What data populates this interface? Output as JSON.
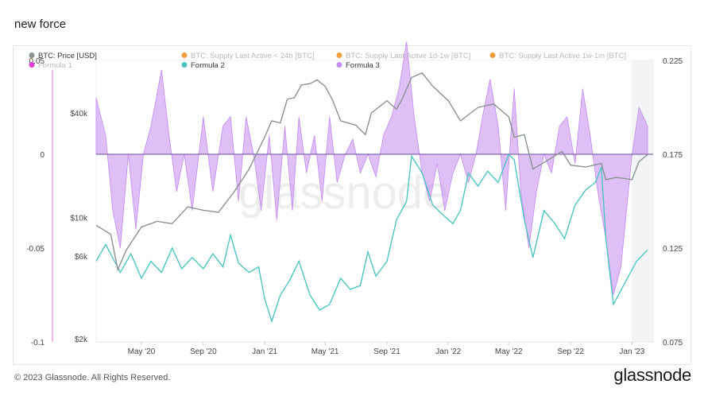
{
  "page": {
    "title": "new force",
    "footer": "© 2023 Glassnode. All Rights Reserved.",
    "brand": "glassnode",
    "watermark": "glassnode"
  },
  "colors": {
    "btc_price": "#8a9290",
    "formula2": "#4dc6c2",
    "formula3": "#c38aef",
    "orange": "#f59c3b",
    "magenta": "#e33ad6"
  },
  "chart_data": {
    "type": "line",
    "legend": [
      {
        "name": "BTC: Price [USD]",
        "color": "#8a9290",
        "faded": false
      },
      {
        "name": "BTC: Supply Last Active < 24h [BTC]",
        "color": "#f59c3b",
        "faded": true
      },
      {
        "name": "BTC: Supply Last Active 1d-1w [BTC]",
        "color": "#f59c3b",
        "faded": true
      },
      {
        "name": "BTC: Supply Last Active 1w-1m [BTC]",
        "color": "#f59c3b",
        "faded": true
      },
      {
        "name": "Formula 1",
        "color": "#e33ad6",
        "faded": true
      },
      {
        "name": "Formula 2",
        "color": "#4dc6c2",
        "faded": false
      },
      {
        "name": "Formula 3",
        "color": "#c38aef",
        "faded": false
      }
    ],
    "x_ticks": [
      "May '20",
      "Sep '20",
      "Jan '21",
      "May '21",
      "Sep '21",
      "Jan '22",
      "May '22",
      "Sep '22",
      "Jan '23"
    ],
    "left_axis_ticks": [
      "0.05",
      "0",
      "-0.05",
      "-0.1"
    ],
    "price_axis_ticks": [
      "$40k",
      "$10k",
      "$6k",
      "$2k"
    ],
    "right_axis_ticks": [
      "0.225",
      "0.175",
      "0.125",
      "0.075"
    ],
    "left_range": [
      -0.1,
      0.05
    ],
    "right_range": [
      0.075,
      0.225
    ],
    "price_scale": "log",
    "series": [
      {
        "name": "BTC: Price [USD]",
        "axis": "price",
        "points": [
          [
            "2020-02-01",
            9000
          ],
          [
            "2020-03-01",
            8000
          ],
          [
            "2020-03-15",
            5000
          ],
          [
            "2020-04-01",
            6500
          ],
          [
            "2020-05-01",
            8800
          ],
          [
            "2020-06-01",
            9500
          ],
          [
            "2020-07-01",
            9200
          ],
          [
            "2020-08-01",
            11500
          ],
          [
            "2020-09-01",
            11000
          ],
          [
            "2020-10-01",
            10700
          ],
          [
            "2020-11-01",
            14000
          ],
          [
            "2020-12-01",
            19000
          ],
          [
            "2021-01-01",
            29000
          ],
          [
            "2021-01-15",
            36000
          ],
          [
            "2021-02-01",
            35000
          ],
          [
            "2021-02-15",
            48000
          ],
          [
            "2021-03-01",
            49000
          ],
          [
            "2021-03-15",
            58000
          ],
          [
            "2021-04-01",
            59000
          ],
          [
            "2021-04-15",
            62000
          ],
          [
            "2021-05-01",
            57000
          ],
          [
            "2021-05-15",
            48000
          ],
          [
            "2021-06-01",
            36000
          ],
          [
            "2021-07-01",
            34000
          ],
          [
            "2021-07-20",
            30000
          ],
          [
            "2021-08-01",
            40000
          ],
          [
            "2021-09-01",
            47000
          ],
          [
            "2021-09-20",
            42000
          ],
          [
            "2021-10-01",
            48000
          ],
          [
            "2021-10-20",
            64000
          ],
          [
            "2021-11-10",
            68000
          ],
          [
            "2021-12-01",
            57000
          ],
          [
            "2022-01-01",
            47000
          ],
          [
            "2022-01-25",
            36000
          ],
          [
            "2022-03-01",
            43000
          ],
          [
            "2022-04-01",
            45000
          ],
          [
            "2022-05-01",
            38000
          ],
          [
            "2022-05-12",
            29000
          ],
          [
            "2022-06-01",
            30000
          ],
          [
            "2022-06-18",
            19000
          ],
          [
            "2022-07-01",
            20000
          ],
          [
            "2022-08-15",
            24000
          ],
          [
            "2022-09-01",
            20000
          ],
          [
            "2022-10-01",
            19500
          ],
          [
            "2022-11-01",
            20500
          ],
          [
            "2022-11-10",
            16500
          ],
          [
            "2022-12-01",
            17000
          ],
          [
            "2023-01-01",
            16500
          ],
          [
            "2023-01-15",
            21000
          ],
          [
            "2023-02-01",
            23000
          ]
        ]
      },
      {
        "name": "Formula 2",
        "axis": "right",
        "points": [
          [
            "2020-02-01",
            0.118
          ],
          [
            "2020-02-20",
            0.127
          ],
          [
            "2020-03-20",
            0.112
          ],
          [
            "2020-04-10",
            0.122
          ],
          [
            "2020-05-01",
            0.109
          ],
          [
            "2020-05-20",
            0.118
          ],
          [
            "2020-06-10",
            0.112
          ],
          [
            "2020-07-01",
            0.125
          ],
          [
            "2020-07-20",
            0.114
          ],
          [
            "2020-08-10",
            0.12
          ],
          [
            "2020-09-01",
            0.114
          ],
          [
            "2020-09-20",
            0.122
          ],
          [
            "2020-10-10",
            0.115
          ],
          [
            "2020-10-25",
            0.132
          ],
          [
            "2020-11-10",
            0.117
          ],
          [
            "2020-12-01",
            0.112
          ],
          [
            "2020-12-20",
            0.115
          ],
          [
            "2021-01-01",
            0.098
          ],
          [
            "2021-01-15",
            0.086
          ],
          [
            "2021-02-01",
            0.1
          ],
          [
            "2021-02-20",
            0.108
          ],
          [
            "2021-03-10",
            0.118
          ],
          [
            "2021-04-01",
            0.1
          ],
          [
            "2021-04-20",
            0.092
          ],
          [
            "2021-05-10",
            0.095
          ],
          [
            "2021-06-01",
            0.109
          ],
          [
            "2021-06-20",
            0.103
          ],
          [
            "2021-07-10",
            0.105
          ],
          [
            "2021-07-25",
            0.123
          ],
          [
            "2021-08-10",
            0.11
          ],
          [
            "2021-09-01",
            0.118
          ],
          [
            "2021-09-20",
            0.14
          ],
          [
            "2021-10-10",
            0.15
          ],
          [
            "2021-10-20",
            0.174
          ],
          [
            "2021-11-10",
            0.165
          ],
          [
            "2021-12-01",
            0.148
          ],
          [
            "2021-12-20",
            0.143
          ],
          [
            "2022-01-10",
            0.138
          ],
          [
            "2022-01-25",
            0.145
          ],
          [
            "2022-02-10",
            0.165
          ],
          [
            "2022-03-01",
            0.158
          ],
          [
            "2022-03-20",
            0.166
          ],
          [
            "2022-04-10",
            0.16
          ],
          [
            "2022-05-01",
            0.175
          ],
          [
            "2022-05-12",
            0.172
          ],
          [
            "2022-06-01",
            0.14
          ],
          [
            "2022-06-18",
            0.12
          ],
          [
            "2022-07-10",
            0.145
          ],
          [
            "2022-08-01",
            0.138
          ],
          [
            "2022-08-20",
            0.13
          ],
          [
            "2022-09-10",
            0.148
          ],
          [
            "2022-10-01",
            0.156
          ],
          [
            "2022-10-20",
            0.16
          ],
          [
            "2022-11-01",
            0.168
          ],
          [
            "2022-11-10",
            0.13
          ],
          [
            "2022-11-25",
            0.095
          ],
          [
            "2022-12-15",
            0.105
          ],
          [
            "2023-01-10",
            0.118
          ],
          [
            "2023-02-01",
            0.124
          ]
        ]
      },
      {
        "name": "Formula 3",
        "axis": "left",
        "type": "area",
        "points": [
          [
            "2020-02-01",
            0.03
          ],
          [
            "2020-02-20",
            0.01
          ],
          [
            "2020-03-05",
            -0.03
          ],
          [
            "2020-03-20",
            -0.05
          ],
          [
            "2020-04-05",
            0.0
          ],
          [
            "2020-04-20",
            -0.04
          ],
          [
            "2020-05-05",
            0.0
          ],
          [
            "2020-05-20",
            0.015
          ],
          [
            "2020-06-10",
            0.045
          ],
          [
            "2020-06-25",
            0.01
          ],
          [
            "2020-07-10",
            -0.02
          ],
          [
            "2020-07-25",
            0.0
          ],
          [
            "2020-08-10",
            -0.03
          ],
          [
            "2020-09-01",
            0.02
          ],
          [
            "2020-09-20",
            -0.02
          ],
          [
            "2020-10-10",
            0.015
          ],
          [
            "2020-10-25",
            0.02
          ],
          [
            "2020-11-10",
            -0.025
          ],
          [
            "2020-11-25",
            0.02
          ],
          [
            "2020-12-10",
            0.0
          ],
          [
            "2020-12-25",
            -0.03
          ],
          [
            "2021-01-10",
            0.01
          ],
          [
            "2021-01-25",
            -0.035
          ],
          [
            "2021-02-10",
            0.015
          ],
          [
            "2021-02-25",
            -0.03
          ],
          [
            "2021-03-10",
            0.02
          ],
          [
            "2021-03-25",
            -0.01
          ],
          [
            "2021-04-10",
            0.01
          ],
          [
            "2021-04-25",
            -0.025
          ],
          [
            "2021-05-10",
            0.02
          ],
          [
            "2021-05-25",
            -0.015
          ],
          [
            "2021-06-10",
            0.0
          ],
          [
            "2021-06-25",
            0.008
          ],
          [
            "2021-07-10",
            -0.01
          ],
          [
            "2021-07-25",
            0.0
          ],
          [
            "2021-08-10",
            -0.012
          ],
          [
            "2021-08-25",
            0.01
          ],
          [
            "2021-09-10",
            0.02
          ],
          [
            "2021-09-25",
            0.035
          ],
          [
            "2021-10-10",
            0.06
          ],
          [
            "2021-10-25",
            0.02
          ],
          [
            "2021-11-10",
            -0.01
          ],
          [
            "2021-11-25",
            -0.025
          ],
          [
            "2021-12-10",
            -0.005
          ],
          [
            "2021-12-25",
            -0.03
          ],
          [
            "2022-01-10",
            -0.01
          ],
          [
            "2022-01-25",
            0.0
          ],
          [
            "2022-02-10",
            -0.015
          ],
          [
            "2022-02-25",
            0.0
          ],
          [
            "2022-03-10",
            0.02
          ],
          [
            "2022-03-25",
            0.04
          ],
          [
            "2022-04-10",
            0.015
          ],
          [
            "2022-04-25",
            -0.03
          ],
          [
            "2022-05-05",
            0.01
          ],
          [
            "2022-05-12",
            0.035
          ],
          [
            "2022-05-25",
            -0.02
          ],
          [
            "2022-06-10",
            -0.05
          ],
          [
            "2022-06-25",
            -0.02
          ],
          [
            "2022-07-10",
            0.0
          ],
          [
            "2022-07-25",
            -0.01
          ],
          [
            "2022-08-10",
            0.015
          ],
          [
            "2022-08-25",
            0.02
          ],
          [
            "2022-09-10",
            -0.005
          ],
          [
            "2022-09-25",
            0.035
          ],
          [
            "2022-10-10",
            0.01
          ],
          [
            "2022-10-25",
            -0.02
          ],
          [
            "2022-11-10",
            -0.045
          ],
          [
            "2022-11-25",
            -0.075
          ],
          [
            "2022-12-10",
            -0.06
          ],
          [
            "2023-01-01",
            0.0
          ],
          [
            "2023-01-15",
            0.025
          ],
          [
            "2023-02-01",
            0.015
          ]
        ]
      }
    ]
  }
}
